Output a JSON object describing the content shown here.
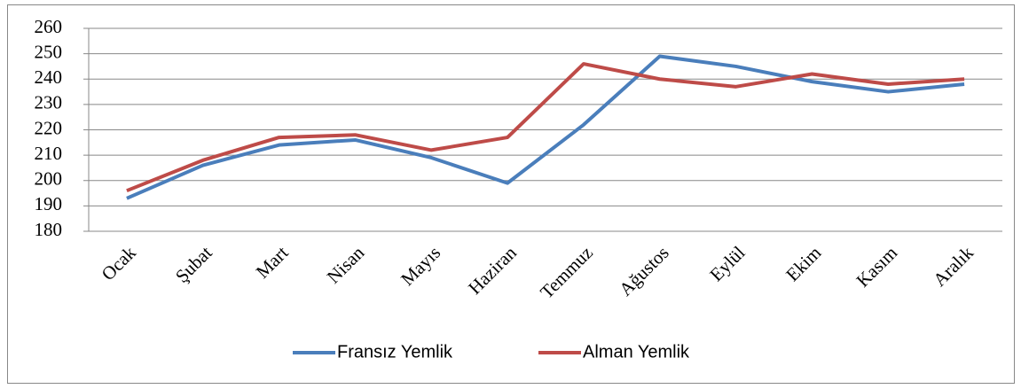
{
  "chart_data": {
    "type": "line",
    "categories": [
      "Ocak",
      "Şubat",
      "Mart",
      "Nisan",
      "Mayıs",
      "Haziran",
      "Temmuz",
      "Ağustos",
      "Eylül",
      "Ekim",
      "Kasım",
      "Aralık"
    ],
    "series": [
      {
        "name": "Fransız Yemlik",
        "color": "#4a7ebb",
        "values": [
          193,
          206,
          214,
          216,
          209,
          199,
          222,
          249,
          245,
          239,
          235,
          238
        ]
      },
      {
        "name": "Alman Yemlik",
        "color": "#be4b48",
        "values": [
          196,
          208,
          217,
          218,
          212,
          217,
          246,
          240,
          237,
          242,
          238,
          240
        ]
      }
    ],
    "ylim": [
      180,
      260
    ],
    "yticks": [
      180,
      190,
      200,
      210,
      220,
      230,
      240,
      250,
      260
    ],
    "grid": true,
    "legend": "bottom"
  }
}
